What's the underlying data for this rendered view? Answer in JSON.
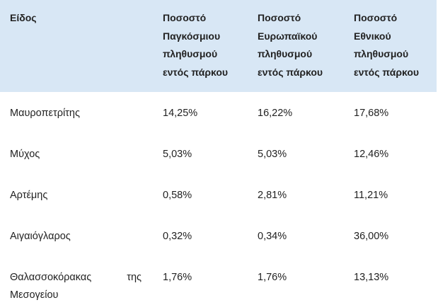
{
  "table": {
    "headers": [
      [
        "Είδος"
      ],
      [
        "Ποσοστό",
        "Παγκόσμιου",
        "πληθυσμού",
        "εντός πάρκου"
      ],
      [
        "Ποσοστό",
        "Ευρωπαϊκού",
        "πληθυσμού",
        "εντός πάρκου"
      ],
      [
        "Ποσοστό",
        "Εθνικού",
        "πληθυσμού",
        "εντός πάρκου"
      ]
    ],
    "rows": [
      [
        "Μαυροπετρίτης",
        "14,25%",
        "16,22%",
        "17,68%"
      ],
      [
        "Μύχος",
        "5,03%",
        "5,03%",
        "12,46%"
      ],
      [
        "Αρτέμης",
        "0,58%",
        "2,81%",
        "11,21%"
      ],
      [
        "Αιγαιόγλαρος",
        "0,32%",
        "0,34%",
        "36,00%"
      ],
      [
        "Θαλασσοκόρακας της Μεσογείου",
        "1,76%",
        "1,76%",
        "13,13%"
      ]
    ],
    "last_row_species_lines": [
      "Θαλασσοκόρακας της",
      "Μεσογείου"
    ]
  },
  "colors": {
    "header_background": "#d8e7f5",
    "text": "#222222"
  }
}
